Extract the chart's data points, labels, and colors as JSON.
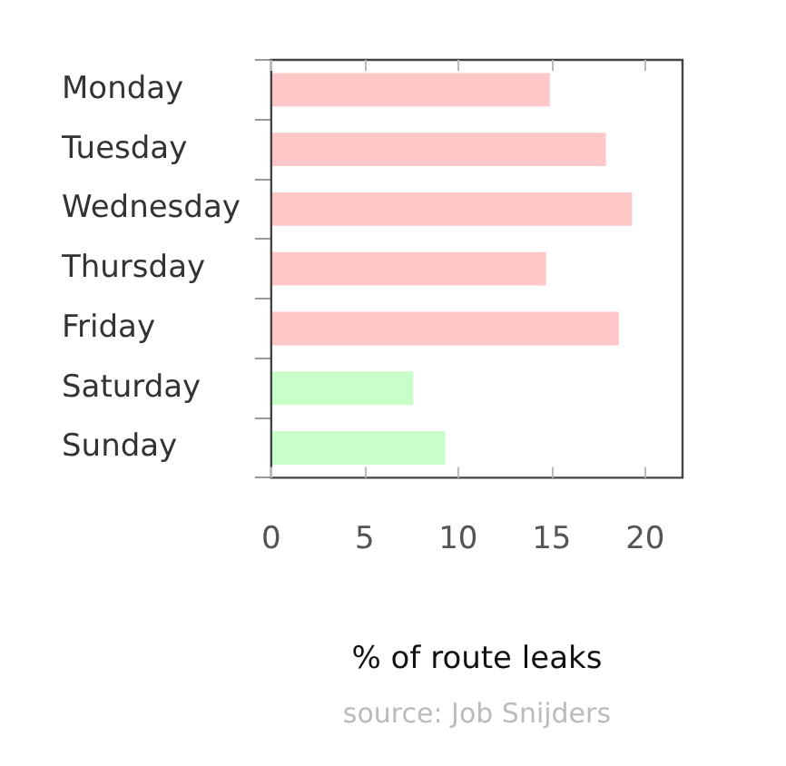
{
  "chart_data": {
    "type": "bar",
    "orientation": "horizontal",
    "categories": [
      "Monday",
      "Tuesday",
      "Wednesday",
      "Thursday",
      "Friday",
      "Saturday",
      "Sunday"
    ],
    "values": [
      14.9,
      17.9,
      19.3,
      14.7,
      18.6,
      7.6,
      9.3
    ],
    "colors": [
      "#ffc8c8",
      "#ffc8c8",
      "#ffc8c8",
      "#ffc8c8",
      "#ffc8c8",
      "#c8ffc8",
      "#c8ffc8"
    ],
    "xlim": [
      0,
      22
    ],
    "xticks": [
      0,
      5,
      10,
      15,
      20
    ],
    "xlabel": "% of route leaks",
    "annotations": [
      "source: Job Snijders"
    ],
    "grid": false,
    "legend": false
  }
}
